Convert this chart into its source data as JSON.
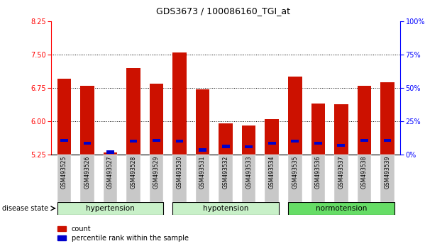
{
  "title": "GDS3673 / 100086160_TGI_at",
  "samples": [
    "GSM493525",
    "GSM493526",
    "GSM493527",
    "GSM493528",
    "GSM493529",
    "GSM493530",
    "GSM493531",
    "GSM493532",
    "GSM493533",
    "GSM493534",
    "GSM493535",
    "GSM493536",
    "GSM493537",
    "GSM493538",
    "GSM493539"
  ],
  "count_values": [
    6.95,
    6.8,
    5.3,
    7.2,
    6.85,
    7.55,
    6.72,
    5.95,
    5.9,
    6.05,
    7.0,
    6.4,
    6.38,
    6.8,
    6.88
  ],
  "percentile_values": [
    5.57,
    5.5,
    5.3,
    5.55,
    5.57,
    5.55,
    5.35,
    5.43,
    5.42,
    5.5,
    5.55,
    5.5,
    5.45,
    5.57,
    5.57
  ],
  "groups": [
    {
      "name": "hypertension",
      "start": 0,
      "end": 4,
      "color": "#c8f0c8"
    },
    {
      "name": "hypotension",
      "start": 5,
      "end": 9,
      "color": "#c8f0c8"
    },
    {
      "name": "normotension",
      "start": 10,
      "end": 14,
      "color": "#66dd66"
    }
  ],
  "ylim_left": [
    5.25,
    8.25
  ],
  "ylim_right": [
    0,
    100
  ],
  "yticks_left": [
    5.25,
    6.0,
    6.75,
    7.5,
    8.25
  ],
  "yticks_right": [
    0,
    25,
    50,
    75,
    100
  ],
  "bar_color": "#cc1100",
  "percentile_color": "#0000cc",
  "baseline": 5.25,
  "grid_lines": [
    6.0,
    6.75,
    7.5
  ],
  "tick_label_bg": "#c8c8c8",
  "bar_width": 0.6
}
